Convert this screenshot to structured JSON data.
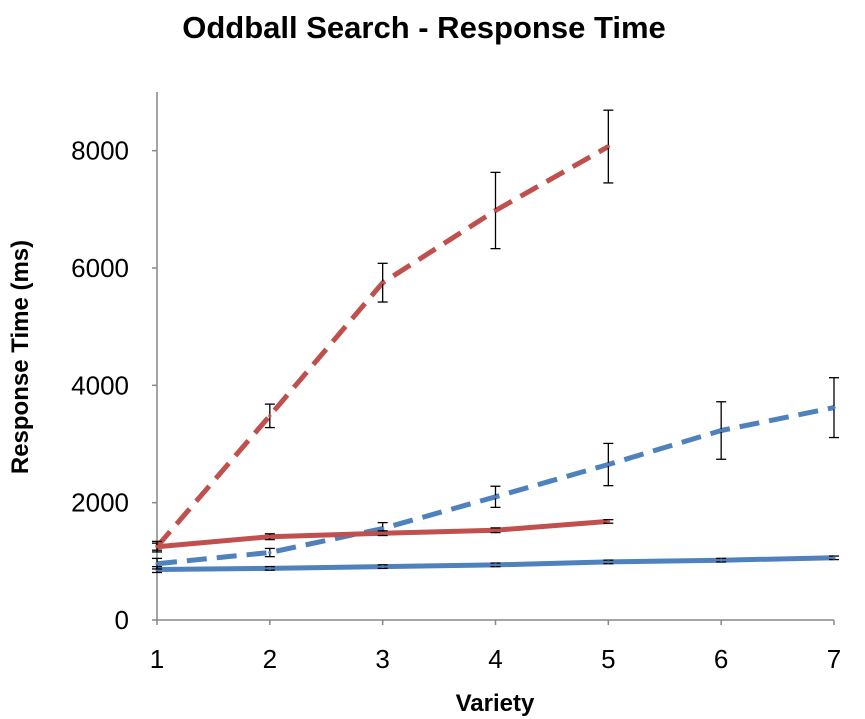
{
  "chart_data": {
    "type": "line",
    "title": "Oddball Search - Response Time",
    "xlabel": "Variety",
    "ylabel": "Response Time (ms)",
    "xlim": [
      1,
      7
    ],
    "ylim": [
      0,
      9000
    ],
    "x_ticks": [
      1,
      2,
      3,
      4,
      5,
      6,
      7
    ],
    "y_ticks": [
      0,
      2000,
      4000,
      6000,
      8000
    ],
    "grid": false,
    "legend": "none",
    "series": [
      {
        "color": "#4f81bd",
        "dash": "solid",
        "x": [
          1,
          2,
          3,
          4,
          5,
          6,
          7
        ],
        "y": [
          860,
          880,
          910,
          940,
          990,
          1020,
          1060
        ],
        "err": [
          50,
          30,
          30,
          30,
          30,
          30,
          30
        ]
      },
      {
        "color": "#4f81bd",
        "dash": "dashed",
        "x": [
          1,
          2,
          3,
          4,
          5,
          6,
          7
        ],
        "y": [
          960,
          1150,
          1560,
          2100,
          2650,
          3230,
          3620
        ],
        "err": [
          90,
          70,
          100,
          180,
          360,
          490,
          510
        ]
      },
      {
        "color": "#c0504d",
        "dash": "solid",
        "x": [
          1,
          2,
          3,
          4,
          5
        ],
        "y": [
          1250,
          1420,
          1480,
          1530,
          1680
        ],
        "err": [
          60,
          50,
          40,
          40,
          30
        ]
      },
      {
        "color": "#c0504d",
        "dash": "dashed",
        "x": [
          1,
          2,
          3,
          4,
          5
        ],
        "y": [
          1250,
          3480,
          5750,
          6980,
          8070
        ],
        "err": [
          90,
          200,
          330,
          650,
          620
        ]
      }
    ]
  }
}
